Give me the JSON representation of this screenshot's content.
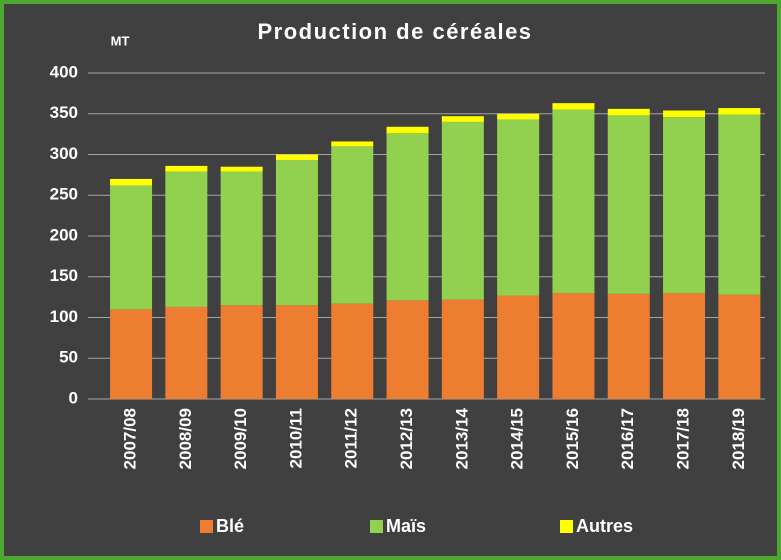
{
  "chart_data": {
    "type": "stacked_bar",
    "title": "Production de céréales",
    "y_axis_label": "MT",
    "categories": [
      "2007/08",
      "2008/09",
      "2009/10",
      "2010/11",
      "2011/12",
      "2012/13",
      "2013/14",
      "2014/15",
      "2015/16",
      "2016/17",
      "2017/18",
      "2018/19"
    ],
    "series": [
      {
        "name": "Blé",
        "color": "#ed7d31",
        "values": [
          110,
          113,
          115,
          115,
          117,
          121,
          122,
          127,
          130,
          129,
          130,
          128
        ]
      },
      {
        "name": "Maïs",
        "color": "#92d050",
        "values": [
          152,
          166,
          164,
          178,
          193,
          205,
          218,
          216,
          225,
          219,
          216,
          221
        ]
      },
      {
        "name": "Autres",
        "color": "#ffff00",
        "values": [
          8,
          7,
          6,
          7,
          6,
          8,
          7,
          7,
          8,
          8,
          8,
          8
        ]
      }
    ],
    "ylim": [
      0,
      400
    ],
    "yticks": [
      0,
      50,
      100,
      150,
      200,
      250,
      300,
      350,
      400
    ],
    "grid": true,
    "legend": "bottom"
  }
}
